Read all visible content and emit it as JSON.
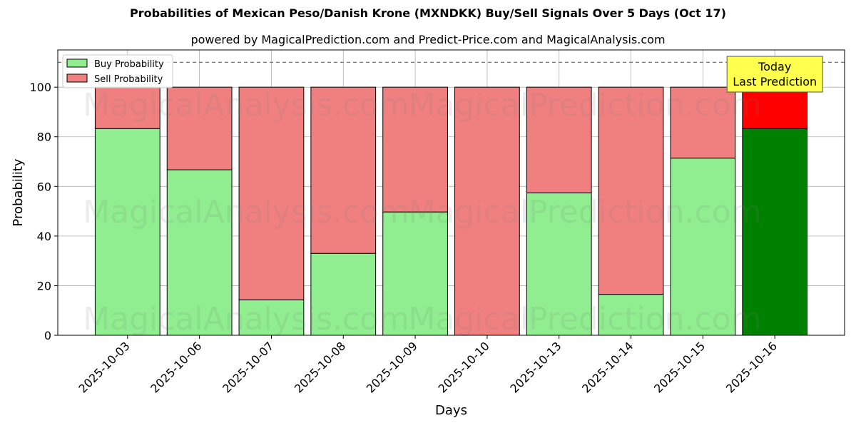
{
  "title": "Probabilities of Mexican Peso/Danish Krone (MXNDKK) Buy/Sell Signals Over 5 Days (Oct 17)",
  "subtitle": "powered by MagicalPrediction.com and Predict-Price.com and MagicalAnalysis.com",
  "watermarks": [
    "MagicalAnalysis.com",
    "MagicalPrediction.com"
  ],
  "colors": {
    "buy": "#90ee90",
    "sell": "#f08080",
    "buy_last": "#008000",
    "sell_last": "#ff0000",
    "annotation_bg": "#ffff4d"
  },
  "chart_data": {
    "type": "bar",
    "stacked": true,
    "categories": [
      "2025-10-03",
      "2025-10-06",
      "2025-10-07",
      "2025-10-08",
      "2025-10-09",
      "2025-10-10",
      "2025-10-13",
      "2025-10-14",
      "2025-10-15",
      "2025-10-16"
    ],
    "series": [
      {
        "name": "Buy Probability",
        "values": [
          83.3,
          66.7,
          14.3,
          33.0,
          49.7,
          0,
          57.4,
          16.5,
          71.4,
          83.3
        ]
      },
      {
        "name": "Sell Probability",
        "values": [
          16.7,
          33.3,
          85.7,
          67.0,
          50.3,
          100,
          42.6,
          83.5,
          28.6,
          16.7
        ]
      }
    ],
    "xlabel": "Days",
    "ylabel": "Probability",
    "ylim": [
      0,
      115
    ],
    "yticks": [
      0,
      20,
      40,
      60,
      80,
      100
    ],
    "reference_line": 110,
    "grid": true,
    "legend_position": "top-left",
    "annotation": {
      "lines": [
        "Today",
        "Last Prediction"
      ]
    }
  }
}
